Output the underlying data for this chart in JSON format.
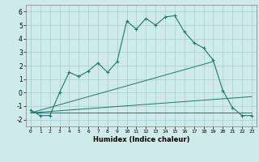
{
  "x": [
    0,
    1,
    2,
    3,
    4,
    5,
    6,
    7,
    8,
    9,
    10,
    11,
    12,
    13,
    14,
    15,
    16,
    17,
    18,
    19,
    20,
    21,
    22,
    23
  ],
  "line1": [
    -1.3,
    -1.7,
    -1.7,
    0.0,
    1.5,
    1.2,
    1.6,
    2.2,
    1.5,
    2.3,
    5.3,
    4.7,
    5.5,
    5.0,
    5.6,
    5.7,
    4.5,
    3.7,
    3.3,
    2.4,
    0.15,
    -1.1,
    -1.7,
    -1.7
  ],
  "line2_x": [
    0,
    19
  ],
  "line2_y": [
    -1.5,
    2.3
  ],
  "line3_x": [
    0,
    23
  ],
  "line3_y": [
    -1.5,
    -0.3
  ],
  "line4_x": [
    0,
    23
  ],
  "line4_y": [
    -1.5,
    -1.5
  ],
  "color": "#1a7a6e",
  "bg_color": "#ceeaea",
  "grid_color": "#aacccc",
  "xlabel": "Humidex (Indice chaleur)",
  "xlim": [
    -0.5,
    23.5
  ],
  "ylim": [
    -2.5,
    6.5
  ],
  "yticks": [
    -2,
    -1,
    0,
    1,
    2,
    3,
    4,
    5,
    6
  ],
  "xticks": [
    0,
    1,
    2,
    3,
    4,
    5,
    6,
    7,
    8,
    9,
    10,
    11,
    12,
    13,
    14,
    15,
    16,
    17,
    18,
    19,
    20,
    21,
    22,
    23
  ]
}
